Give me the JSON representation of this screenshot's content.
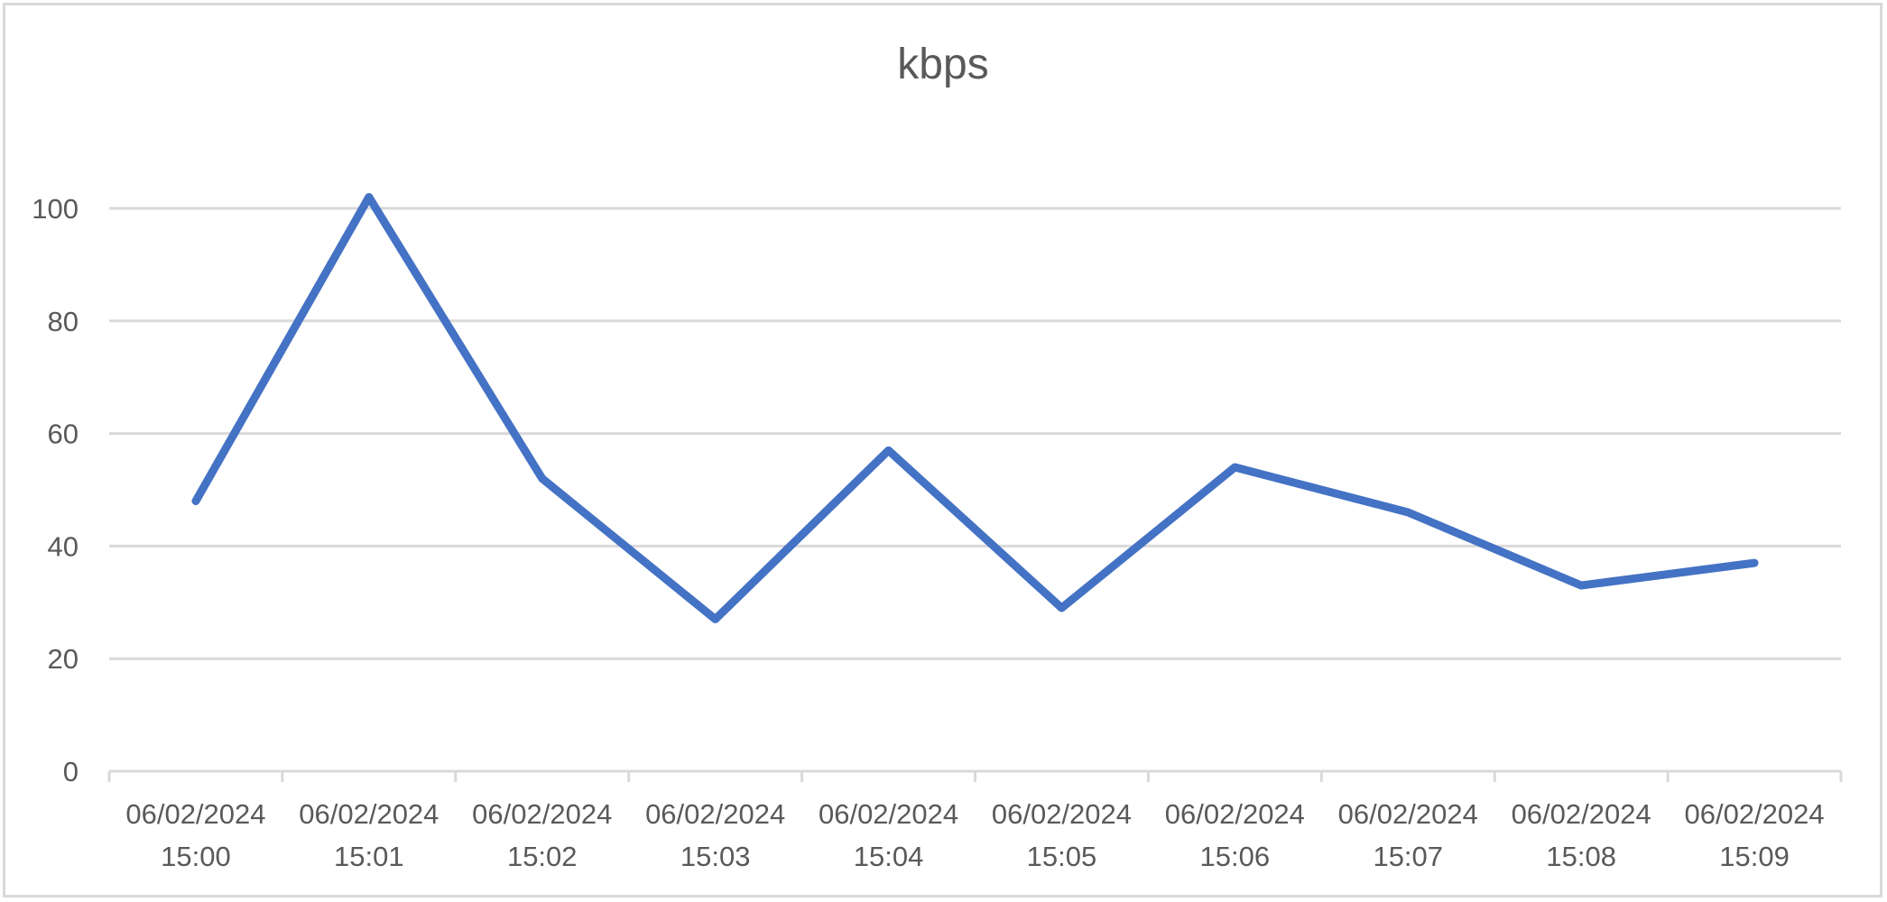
{
  "chart_data": {
    "type": "line",
    "title": "kbps",
    "xlabel": "",
    "ylabel": "",
    "categories": [
      [
        "06/02/2024",
        "15:00"
      ],
      [
        "06/02/2024",
        "15:01"
      ],
      [
        "06/02/2024",
        "15:02"
      ],
      [
        "06/02/2024",
        "15:03"
      ],
      [
        "06/02/2024",
        "15:04"
      ],
      [
        "06/02/2024",
        "15:05"
      ],
      [
        "06/02/2024",
        "15:06"
      ],
      [
        "06/02/2024",
        "15:07"
      ],
      [
        "06/02/2024",
        "15:08"
      ],
      [
        "06/02/2024",
        "15:09"
      ]
    ],
    "series": [
      {
        "values": [
          48,
          102,
          52,
          27,
          57,
          29,
          54,
          46,
          33,
          37
        ]
      }
    ],
    "ylim": [
      0,
      100
    ],
    "yticks": [
      0,
      20,
      40,
      60,
      80,
      100
    ],
    "grid": true,
    "legend": "none",
    "colors": {
      "line": "#4472c4",
      "grid": "#d9d9d9",
      "axis": "#d9d9d9",
      "text": "#595959",
      "border": "#d9d9d9"
    }
  }
}
